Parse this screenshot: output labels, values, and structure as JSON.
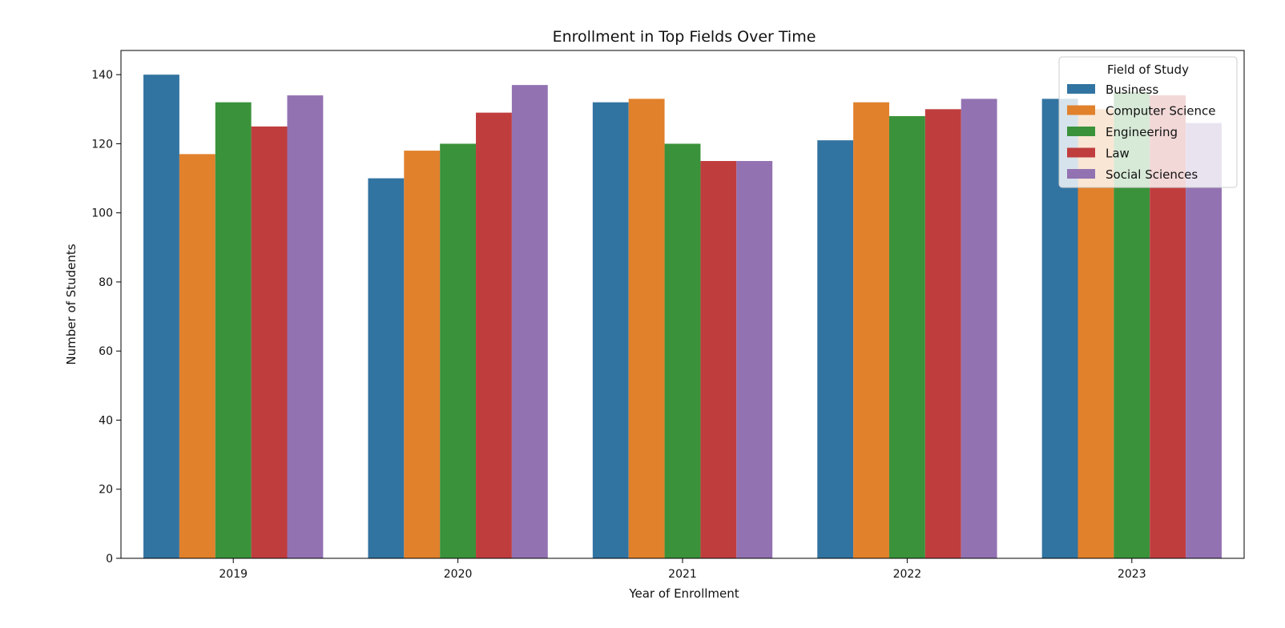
{
  "chart_data": {
    "type": "bar",
    "title": "Enrollment in Top Fields Over Time",
    "xlabel": "Year of Enrollment",
    "ylabel": "Number of Students",
    "categories": [
      "2019",
      "2020",
      "2021",
      "2022",
      "2023"
    ],
    "ylim": [
      0,
      147
    ],
    "yticks": [
      0,
      20,
      40,
      60,
      80,
      100,
      120,
      140
    ],
    "grid": false,
    "legend": {
      "title": "Field of Study",
      "placement": "top-right"
    },
    "series": [
      {
        "name": "Business",
        "color": "#3274a1",
        "values": [
          140,
          110,
          132,
          121,
          133
        ]
      },
      {
        "name": "Computer Science",
        "color": "#e1812c",
        "values": [
          117,
          118,
          133,
          132,
          130
        ]
      },
      {
        "name": "Engineering",
        "color": "#3a923a",
        "values": [
          132,
          120,
          120,
          128,
          135
        ]
      },
      {
        "name": "Law",
        "color": "#c03d3e",
        "values": [
          125,
          129,
          115,
          130,
          134
        ]
      },
      {
        "name": "Social Sciences",
        "color": "#9372b2",
        "values": [
          134,
          137,
          115,
          133,
          126
        ]
      }
    ]
  }
}
